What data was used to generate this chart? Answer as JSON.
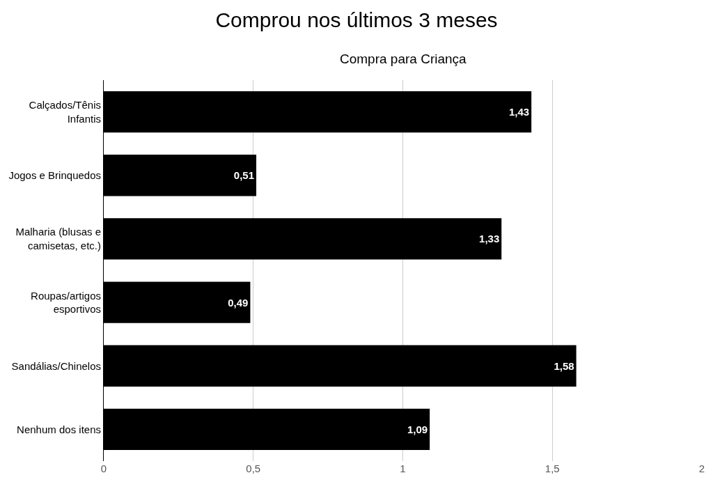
{
  "chart_data": {
    "type": "bar",
    "orientation": "horizontal",
    "title": "Comprou nos últimos 3 meses",
    "subtitle": "Compra para Criança",
    "categories": [
      "Calçados/Tênis\nInfantis",
      "Jogos e Brinquedos",
      "Malharia (blusas e\ncamisetas, etc.)",
      "Roupas/artigos\nesportivos",
      "Sandálias/Chinelos",
      "Nenhum dos itens"
    ],
    "values": [
      1.43,
      0.51,
      1.33,
      0.49,
      1.58,
      1.09
    ],
    "value_labels": [
      "1,43",
      "0,51",
      "1,33",
      "0,49",
      "1,58",
      "1,09"
    ],
    "color": "#000000",
    "xlim": [
      0,
      2
    ],
    "xticks": [
      0,
      {
        "value": 0.5,
        "label": "0,5"
      },
      1,
      {
        "value": 1.5,
        "label": "1,5"
      },
      2
    ],
    "grid": "x"
  }
}
